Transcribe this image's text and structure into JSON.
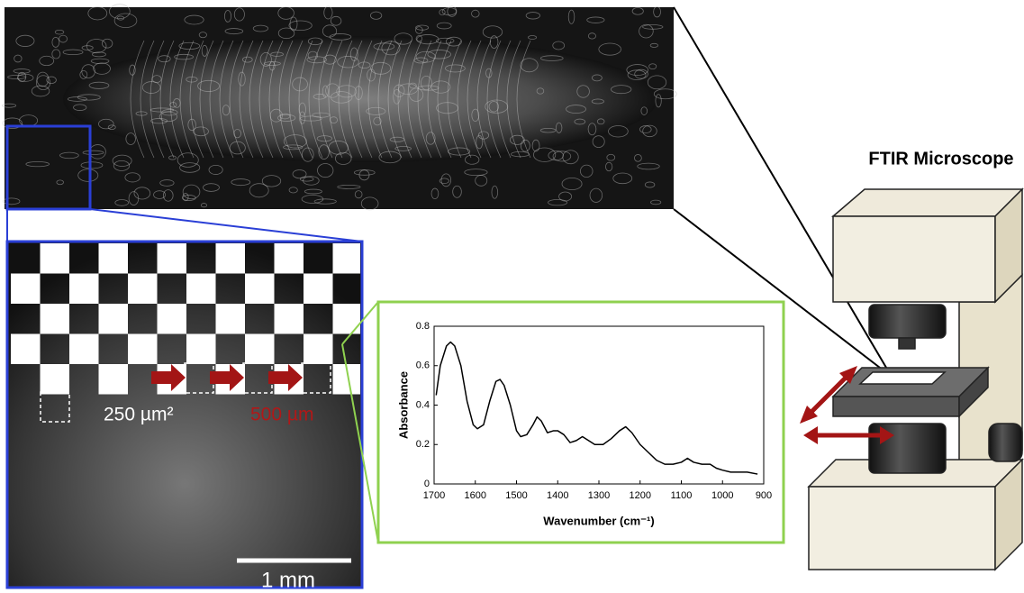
{
  "figure_title": "FTIR Microscope",
  "sample_labels": {
    "pixel_size": "250 µm²",
    "step_size": "500 µm",
    "scale_bar": "1 mm"
  },
  "chart_data": {
    "type": "line",
    "x_label": "Wavenumber (cm⁻¹)",
    "y_label": "Absorbance",
    "x": [
      1695,
      1685,
      1670,
      1660,
      1650,
      1635,
      1620,
      1605,
      1595,
      1580,
      1565,
      1550,
      1540,
      1530,
      1515,
      1500,
      1490,
      1475,
      1460,
      1450,
      1440,
      1425,
      1410,
      1400,
      1385,
      1370,
      1355,
      1340,
      1325,
      1310,
      1290,
      1270,
      1250,
      1235,
      1220,
      1200,
      1180,
      1160,
      1140,
      1120,
      1100,
      1085,
      1070,
      1050,
      1030,
      1015,
      1000,
      980,
      960,
      940,
      915
    ],
    "values": [
      0.45,
      0.6,
      0.7,
      0.72,
      0.7,
      0.6,
      0.42,
      0.3,
      0.28,
      0.3,
      0.42,
      0.52,
      0.53,
      0.5,
      0.4,
      0.27,
      0.24,
      0.25,
      0.3,
      0.34,
      0.32,
      0.26,
      0.27,
      0.27,
      0.25,
      0.21,
      0.22,
      0.24,
      0.22,
      0.2,
      0.2,
      0.23,
      0.27,
      0.29,
      0.26,
      0.2,
      0.16,
      0.12,
      0.1,
      0.1,
      0.11,
      0.13,
      0.11,
      0.1,
      0.1,
      0.08,
      0.07,
      0.06,
      0.06,
      0.06,
      0.05
    ],
    "color": "#000000",
    "xlim": [
      1700,
      900
    ],
    "xticks": [
      1700,
      1600,
      1500,
      1400,
      1300,
      1200,
      1100,
      1000,
      900
    ],
    "ylim": [
      0,
      0.8
    ],
    "yticks": [
      0,
      0.2,
      0.4,
      0.6,
      0.8
    ]
  }
}
